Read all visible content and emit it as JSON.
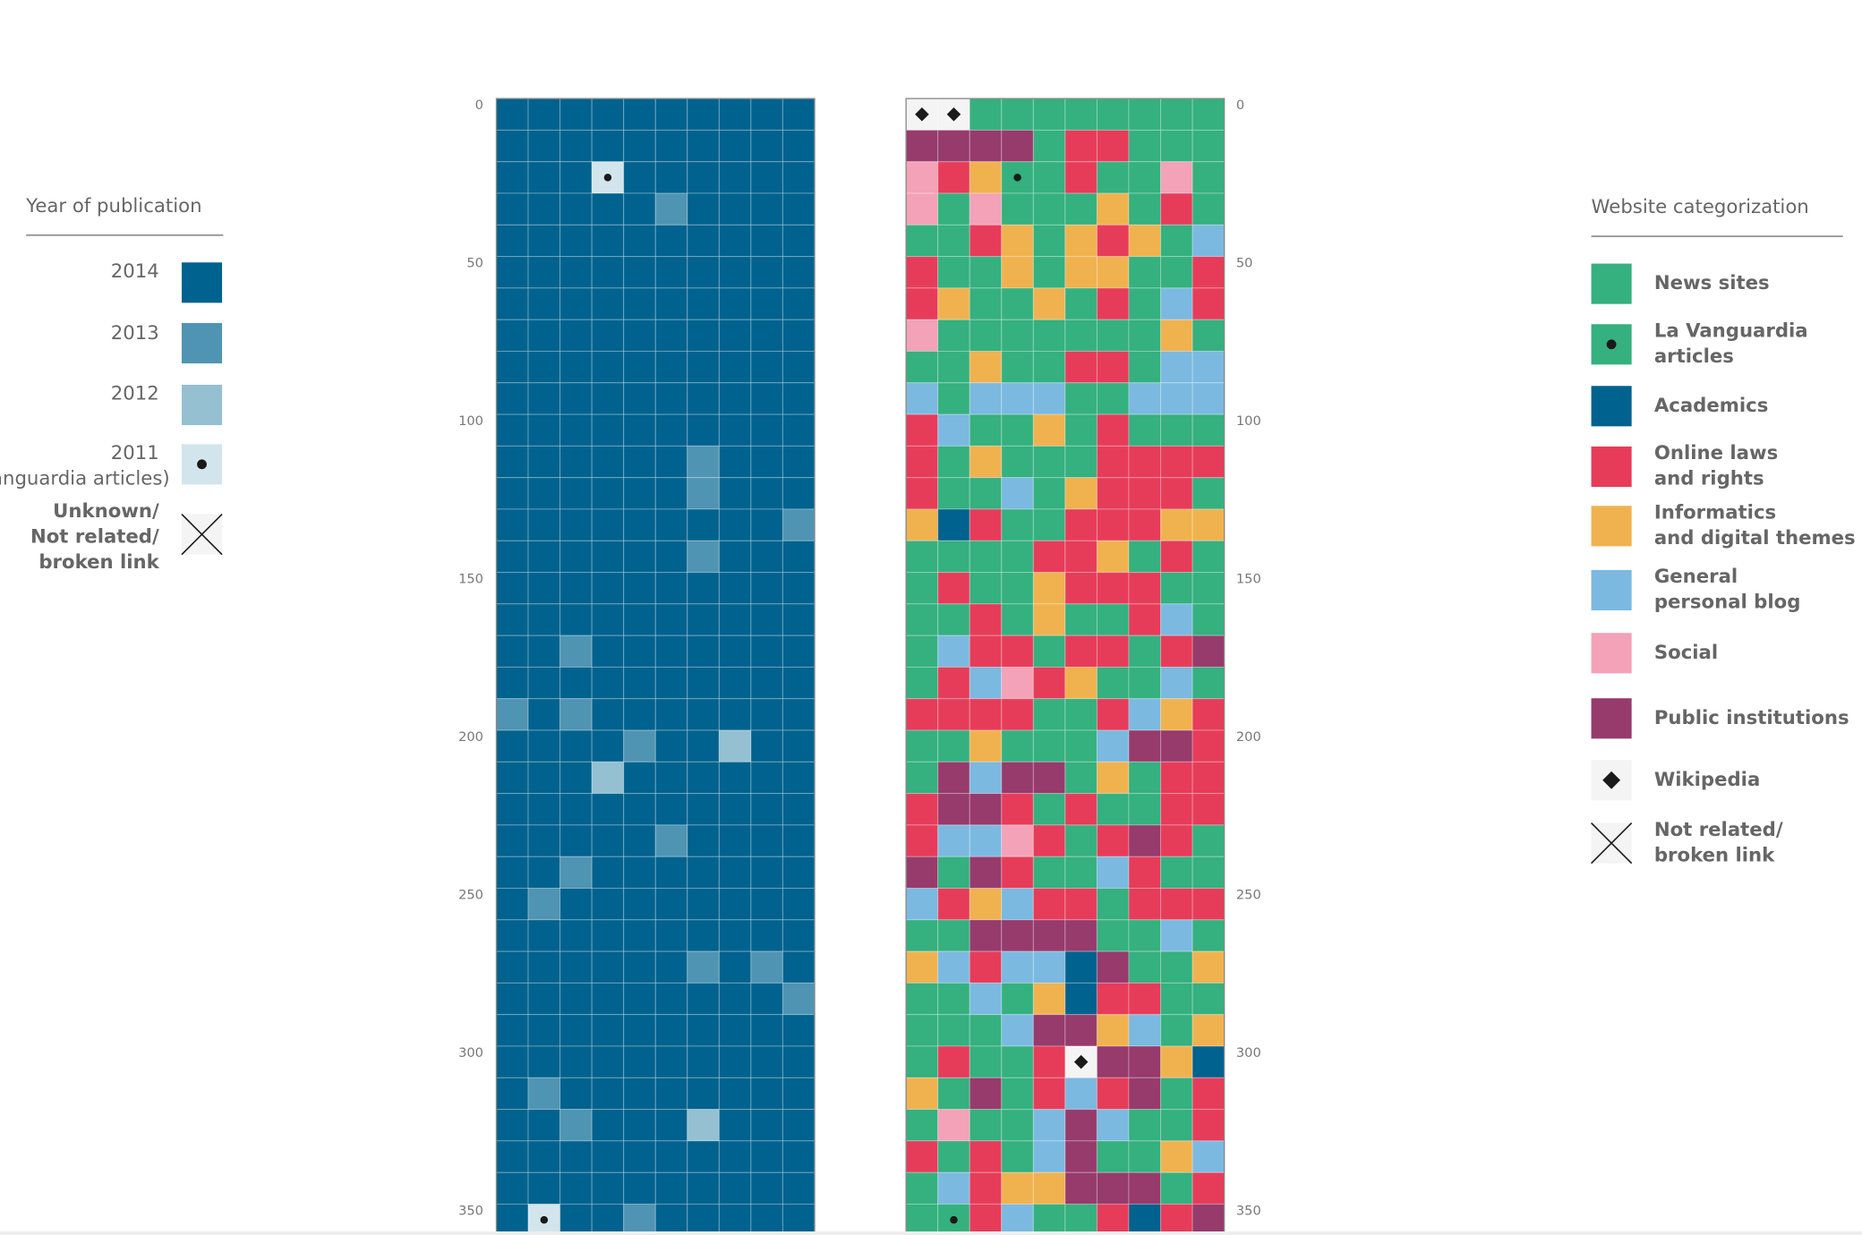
{
  "row_ticks": [
    0,
    50,
    100,
    150,
    200,
    250,
    300,
    350
  ],
  "left_legend": {
    "title": "Year of publication",
    "items": [
      {
        "label": [
          "2014"
        ],
        "color": "#00628e",
        "marker": "none"
      },
      {
        "label": [
          "2013"
        ],
        "color": "#4f94b3",
        "marker": "none"
      },
      {
        "label": [
          "2012"
        ],
        "color": "#95c0d2",
        "marker": "none"
      },
      {
        "label": [
          "2011",
          "(La Vanguardia articles)"
        ],
        "color": "#d3e5ec",
        "marker": "dot"
      },
      {
        "label": [
          "Unknown/",
          "Not related/",
          "broken link"
        ],
        "color": "#f4f4f4",
        "marker": "cross"
      }
    ]
  },
  "right_legend": {
    "title": "Website categorization",
    "items": [
      {
        "label": [
          "News sites"
        ],
        "color": "#35b07f",
        "marker": "none"
      },
      {
        "label": [
          "La Vanguardia",
          "articles"
        ],
        "color": "#35b07f",
        "marker": "dot"
      },
      {
        "label": [
          "Academics"
        ],
        "color": "#00628e",
        "marker": "none"
      },
      {
        "label": [
          "Online laws",
          "and rights"
        ],
        "color": "#e63c5a",
        "marker": "none"
      },
      {
        "label": [
          "Informatics",
          "and digital themes"
        ],
        "color": "#f0b24f",
        "marker": "none"
      },
      {
        "label": [
          "General",
          "personal blog"
        ],
        "color": "#7bb9e0",
        "marker": "none"
      },
      {
        "label": [
          "Social"
        ],
        "color": "#f3a2b7",
        "marker": "none"
      },
      {
        "label": [
          "Public institutions"
        ],
        "color": "#963b6c",
        "marker": "none"
      },
      {
        "label": [
          "Wikipedia"
        ],
        "color": "#f4f4f4",
        "marker": "diamond"
      },
      {
        "label": [
          "Not related/",
          "broken link"
        ],
        "color": "#f4f4f4",
        "marker": "cross"
      }
    ]
  },
  "left_grid": {
    "rows": [
      "0000000000",
      "0000000000",
      "0003000000",
      "0000010000",
      "0000000000",
      "0000000000",
      "0000000000",
      "0000000000",
      "0000000000",
      "0000000000",
      "0000000000",
      "0000001000",
      "0000001000",
      "0000000001",
      "0000001000",
      "0000000000",
      "0000000000",
      "0010000000",
      "0000000000",
      "1010000000",
      "0000100200",
      "0002000000",
      "0000000000",
      "0000010000",
      "0010000000",
      "0100000000",
      "0000000000",
      "0000001010",
      "0000000001",
      "0000000000",
      "0000000000",
      "0100000000",
      "0010002000",
      "0000000000",
      "0000000000",
      "0300100000"
    ]
  },
  "right_grid": {
    "rows": [
      "8800000000",
      "7777033000",
      "6341030060",
      "6060004030",
      "0034043405",
      "3004044003",
      "3400403053",
      "6000000040",
      "0040033055",
      "5055500555",
      "3500403000",
      "3040003333",
      "3005043330",
      "4230033344",
      "0000334030",
      "0300433300",
      "0030400350",
      "0533033037",
      "0356340050",
      "3333003543",
      "0040005773",
      "0757704033",
      "3773030033",
      "3556303730",
      "7073005300",
      "5345330333",
      "0077770050",
      "4535527004",
      "0050423300",
      "0005774504",
      "0300387742",
      "4070353703",
      "0600575003",
      "3030570045",
      "0534477703",
      "0135003237"
    ]
  }
}
